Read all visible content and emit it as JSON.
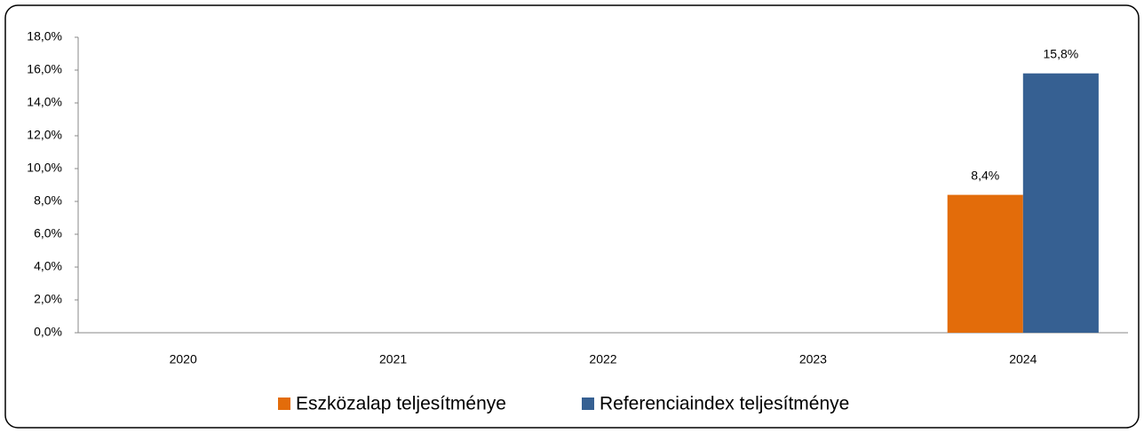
{
  "chart_data": {
    "type": "bar",
    "categories": [
      "2020",
      "2021",
      "2022",
      "2023",
      "2024"
    ],
    "series": [
      {
        "name": "Eszközalap teljesítménye",
        "color": "#e36c0a",
        "values": [
          null,
          null,
          null,
          null,
          8.4
        ],
        "value_labels": [
          null,
          null,
          null,
          null,
          "8,4%"
        ]
      },
      {
        "name": "Referenciaindex teljesítménye",
        "color": "#366092",
        "values": [
          null,
          null,
          null,
          null,
          15.8
        ],
        "value_labels": [
          null,
          null,
          null,
          null,
          "15,8%"
        ]
      }
    ],
    "ylim": [
      0,
      18
    ],
    "yticks": [
      {
        "value": 0,
        "label": "0,0%"
      },
      {
        "value": 2,
        "label": "2,0%"
      },
      {
        "value": 4,
        "label": "4,0%"
      },
      {
        "value": 6,
        "label": "6,0%"
      },
      {
        "value": 8,
        "label": "8,0%"
      },
      {
        "value": 10,
        "label": "10,0%"
      },
      {
        "value": 12,
        "label": "12,0%"
      },
      {
        "value": 14,
        "label": "14,0%"
      },
      {
        "value": 16,
        "label": "16,0%"
      },
      {
        "value": 18,
        "label": "18,0%"
      }
    ],
    "grid": false,
    "legend": "bottom"
  }
}
